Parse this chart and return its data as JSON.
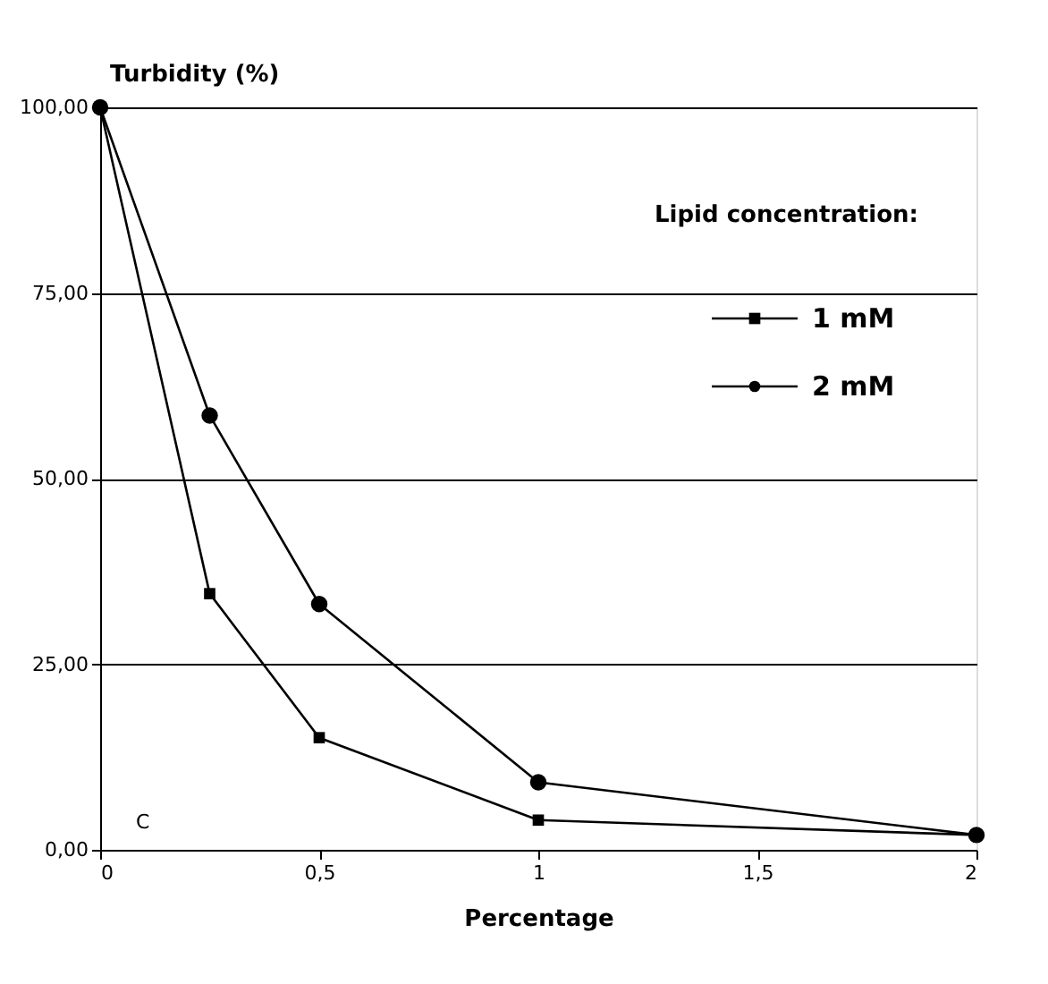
{
  "chart_data": {
    "type": "line",
    "ylabel": "Turbidity (%)",
    "xlabel": "Percentage",
    "legend_title": "Lipid concentration:",
    "legend": "top right",
    "x": [
      0,
      0.25,
      0.5,
      1,
      2
    ],
    "series": [
      {
        "name": "1 mM",
        "color": "#000000",
        "marker": "square",
        "values": [
          100,
          34.5,
          15.1,
          4.0,
          2.0
        ]
      },
      {
        "name": "2 mM",
        "color": "#000000",
        "marker": "circle",
        "values": [
          100,
          58.5,
          33.1,
          9.1,
          2.0
        ]
      }
    ],
    "xlim": [
      0,
      2
    ],
    "xticks": [
      0,
      {
        "value": 0.5,
        "label": "0,5"
      },
      1,
      {
        "value": 1.5,
        "label": "1,5"
      },
      2
    ],
    "ylim": [
      0,
      100
    ],
    "yticks": [
      {
        "value": 0,
        "label": "0,00"
      },
      {
        "value": 25,
        "label": "25,00"
      },
      {
        "value": 50,
        "label": "50,00"
      },
      {
        "value": 75,
        "label": "75,00"
      },
      {
        "value": 100,
        "label": "100,00"
      }
    ],
    "grid": "y",
    "line_style": "solid",
    "annotations": [
      "C"
    ]
  }
}
